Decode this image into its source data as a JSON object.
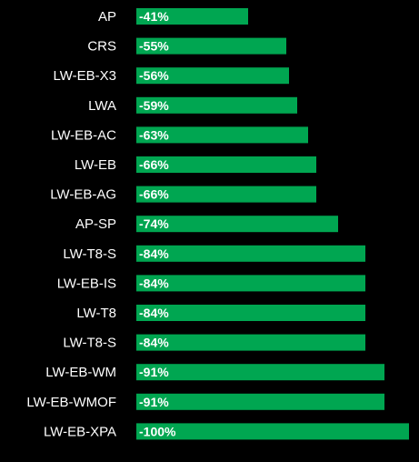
{
  "chart_data": {
    "type": "bar",
    "orientation": "horizontal",
    "categories": [
      "AP",
      "CRS",
      "LW-EB-X3",
      "LWA",
      "LW-EB-AC",
      "LW-EB",
      "LW-EB-AG",
      "AP-SP",
      "LW-T8-S",
      "LW-EB-IS",
      "LW-T8",
      "LW-T8-S",
      "LW-EB-WM",
      "LW-EB-WMOF",
      "LW-EB-XPA"
    ],
    "values": [
      -41,
      -55,
      -56,
      -59,
      -63,
      -66,
      -66,
      -74,
      -84,
      -84,
      -84,
      -84,
      -91,
      -91,
      -100
    ],
    "value_labels": [
      "-41%",
      "-55%",
      "-56%",
      "-59%",
      "-63%",
      "-66%",
      "-66%",
      "-74%",
      "-84%",
      "-84%",
      "-84%",
      "-84%",
      "-91%",
      "-91%",
      "-100%"
    ],
    "title": "",
    "xlabel": "",
    "ylabel": "",
    "xlim": [
      0,
      -100
    ],
    "grid": false,
    "legend": "none",
    "colors": {
      "bar": "#00a651",
      "background": "#000000",
      "text": "#ffffff"
    }
  }
}
